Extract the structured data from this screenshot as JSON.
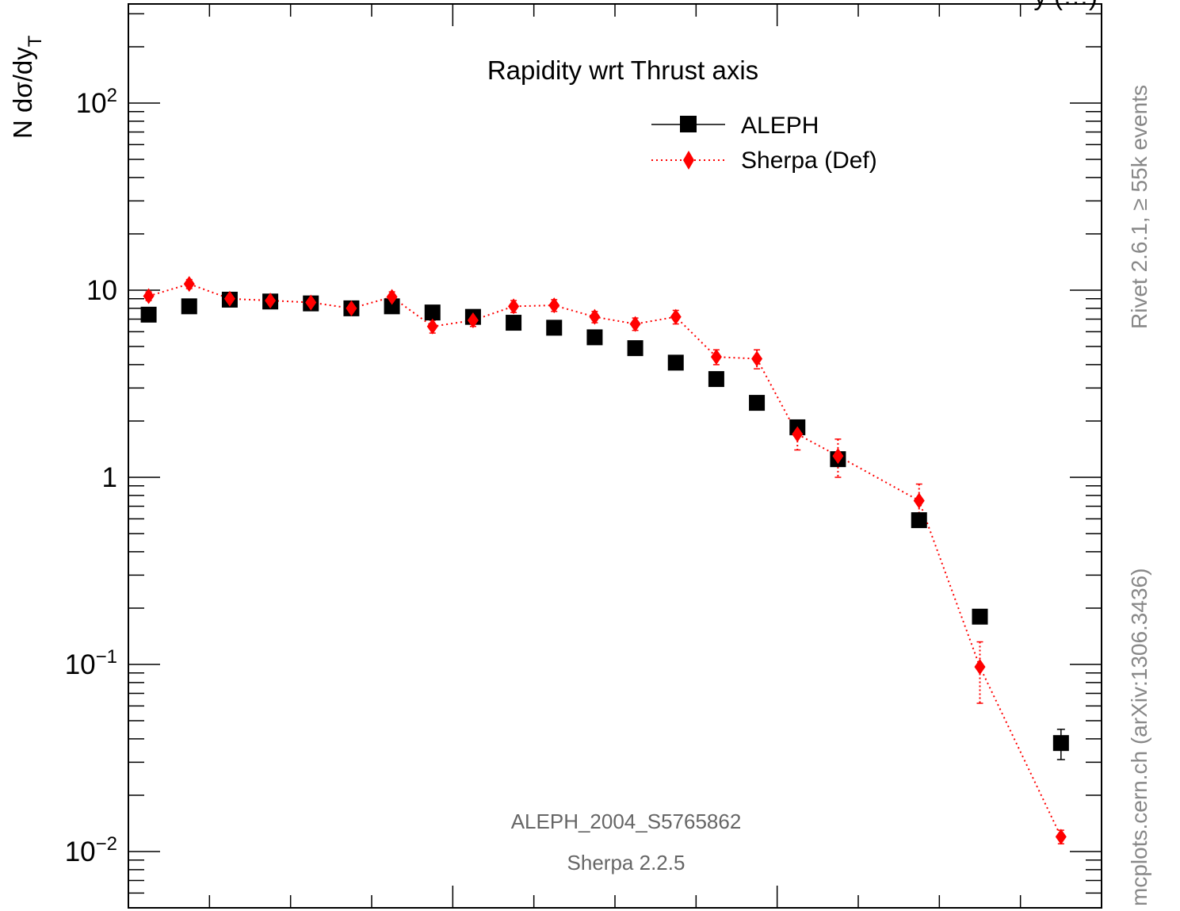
{
  "chart_data": {
    "type": "scatter",
    "title": "Rapidity wrt Thrust axis",
    "ylabel_main": "N dσ/dy",
    "ylabel_sub": "T",
    "top_title_fragment": "y (…)",
    "yscale": "log",
    "ylim": [
      0.0055,
      300
    ],
    "xlim": [
      0,
      12
    ],
    "y_ticks": [
      {
        "label_base": "10",
        "label_exp": "2",
        "value": 100
      },
      {
        "label_base": "10",
        "label_exp": "",
        "value": 10
      },
      {
        "label_base": "1",
        "label_exp": "",
        "value": 1
      },
      {
        "label_base": "10",
        "label_exp": "−1",
        "value": 0.1
      },
      {
        "label_base": "10",
        "label_exp": "−2",
        "value": 0.01
      }
    ],
    "x": [
      0.25,
      0.75,
      1.25,
      1.75,
      2.25,
      2.75,
      3.25,
      3.75,
      4.25,
      4.75,
      5.25,
      5.75,
      6.25,
      6.75,
      7.25,
      7.75,
      8.25,
      8.75,
      9.25,
      9.75,
      10.5,
      11.5
    ],
    "series": [
      {
        "name": "ALEPH",
        "color": "#000000",
        "marker": "square",
        "line": "solid",
        "values": [
          7.4,
          8.2,
          8.9,
          8.7,
          8.5,
          8.0,
          8.2,
          7.6,
          7.2,
          6.7,
          6.3,
          5.6,
          4.9,
          4.1,
          3.35,
          2.5,
          1.85,
          1.25,
          null,
          0.59,
          0.18,
          0.038
        ],
        "err": [
          0,
          0,
          0,
          0,
          0,
          0,
          0,
          0,
          0,
          0,
          0,
          0,
          0,
          0,
          0,
          0,
          0,
          0,
          0,
          0,
          0,
          0.007
        ]
      },
      {
        "name": "Sherpa (Def)",
        "color": "#ff0000",
        "marker": "diamond",
        "line": "dotted",
        "values": [
          9.3,
          10.8,
          9.0,
          8.8,
          8.6,
          8.0,
          9.2,
          6.4,
          6.9,
          8.2,
          8.3,
          7.2,
          6.6,
          7.2,
          4.4,
          4.3,
          1.7,
          1.3,
          null,
          0.75,
          0.097,
          0.012
        ],
        "err": [
          0.5,
          0.6,
          0.5,
          0.5,
          0.5,
          0.5,
          0.6,
          0.5,
          0.5,
          0.6,
          0.6,
          0.5,
          0.5,
          0.6,
          0.4,
          0.5,
          0.3,
          0.3,
          0,
          0.17,
          0.035,
          0.001
        ]
      }
    ],
    "legend_placement": "top-right",
    "annotations": [
      "ALEPH_2004_S5765862",
      "Sherpa 2.2.5"
    ],
    "side_labels": {
      "right_top": "Rivet 2.6.1, ≥ 55k events",
      "right_bottom": "mcplots.cern.ch (arXiv:1306.3436)"
    },
    "colors": {
      "aleph": "#000000",
      "sherpa": "#ff0000",
      "annotation": "#666666",
      "side_text": "#888888"
    }
  }
}
